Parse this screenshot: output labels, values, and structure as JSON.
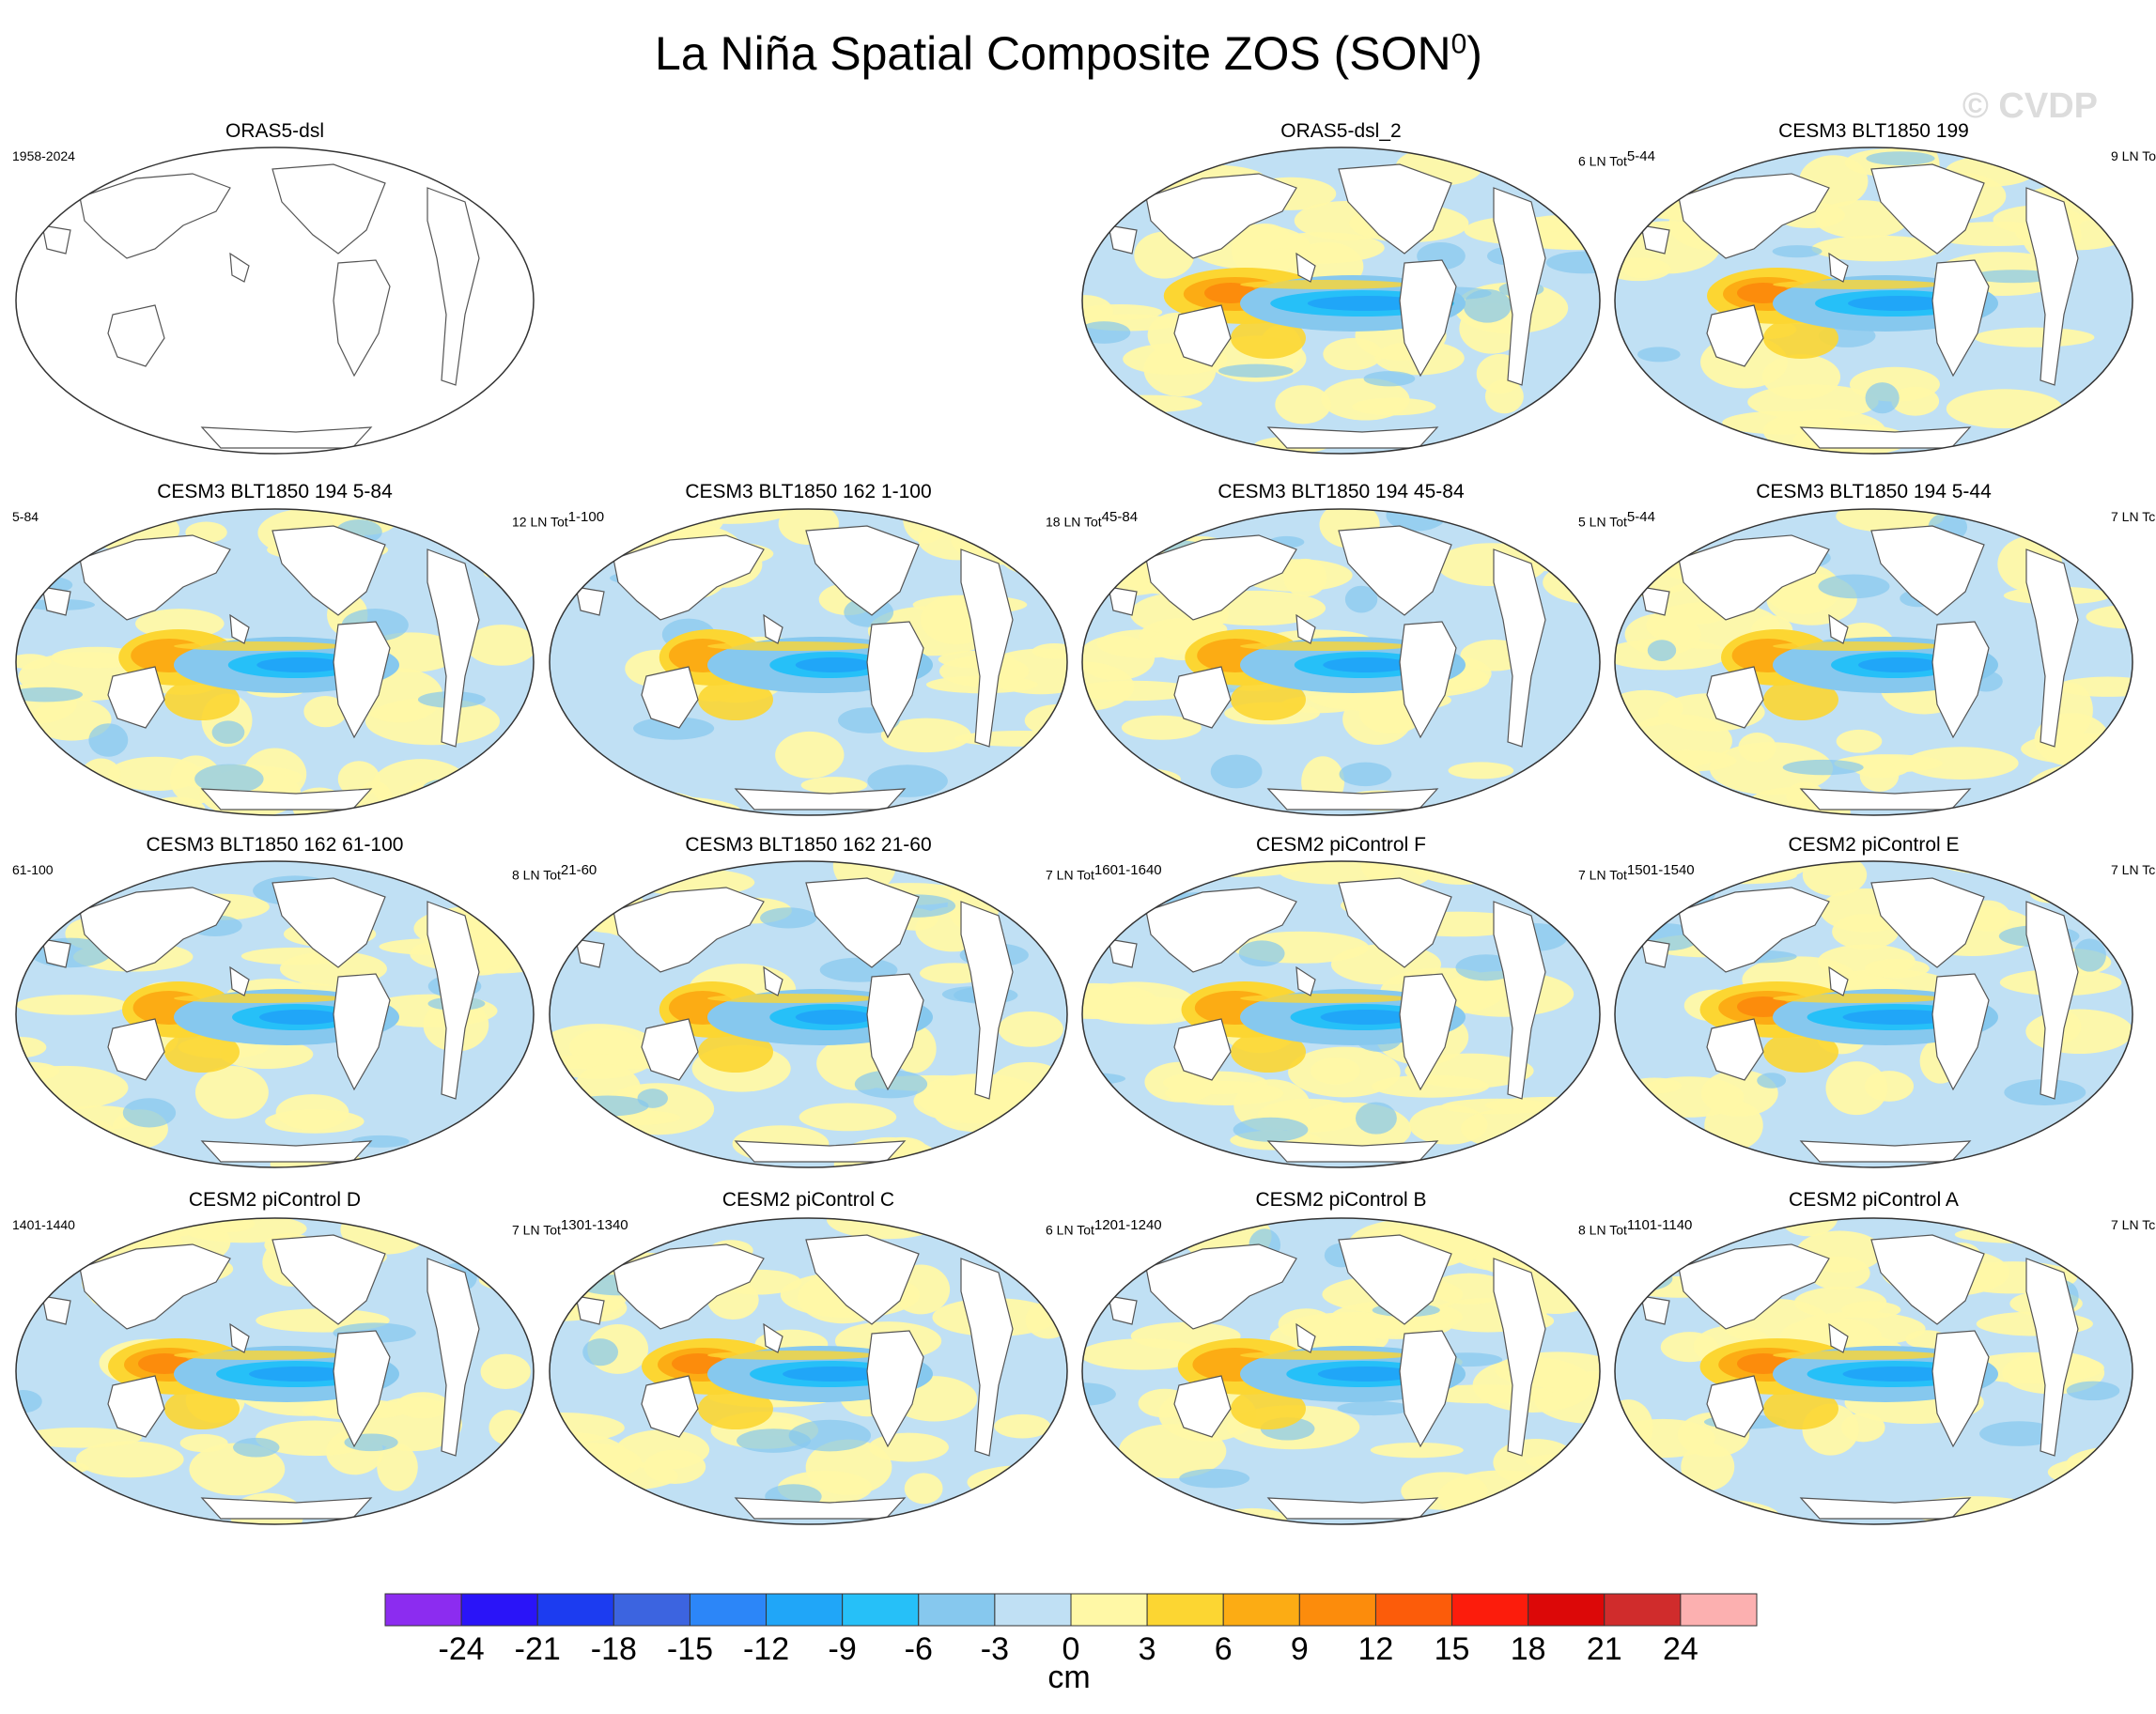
{
  "title_main": "La Niña Spatial Composite ZOS (SON",
  "title_sup": "0",
  "title_close": ")",
  "watermark": "© CVDP",
  "panels": [
    {
      "title": "ORAS5-dsl",
      "left": "1958-2024",
      "right": "",
      "right_sup": "",
      "blank": true,
      "strength": 0
    },
    {
      "title": "ORAS5-dsl_2",
      "left": "",
      "right": "6 LN Tot",
      "right_sup": "5-44",
      "blank": false,
      "strength": 1.15
    },
    {
      "title": "CESM3 BLT1850 199",
      "left": "",
      "right": "9 LN To",
      "right_sup": "",
      "blank": false,
      "strength": 1.0
    },
    {
      "title": "CESM3 BLT1850 194 5-84",
      "left": "5-84",
      "right": "12 LN Tot",
      "right_sup": "1-100",
      "blank": false,
      "strength": 0.85
    },
    {
      "title": "CESM3 BLT1850 162 1-100",
      "left": "",
      "right": "18 LN Tot",
      "right_sup": "45-84",
      "blank": false,
      "strength": 0.75
    },
    {
      "title": "CESM3 BLT1850 194 45-84",
      "left": "",
      "right": "5 LN Tot",
      "right_sup": "5-44",
      "blank": false,
      "strength": 0.85
    },
    {
      "title": "CESM3 BLT1850 194 5-44",
      "left": "",
      "right": "7 LN Tc",
      "right_sup": "",
      "blank": false,
      "strength": 0.8
    },
    {
      "title": "CESM3 BLT1850 162 61-100",
      "left": "61-100",
      "right": "8 LN Tot",
      "right_sup": "21-60",
      "blank": false,
      "strength": 0.8
    },
    {
      "title": "CESM3 BLT1850 162 21-60",
      "left": "",
      "right": "7 LN Tot",
      "right_sup": "1601-1640",
      "blank": false,
      "strength": 0.75
    },
    {
      "title": "CESM2 piControl F",
      "left": "",
      "right": "7 LN Tot",
      "right_sup": "1501-1540",
      "blank": false,
      "strength": 0.9
    },
    {
      "title": "CESM2 piControl E",
      "left": "",
      "right": "7 LN Tc",
      "right_sup": "",
      "blank": false,
      "strength": 1.1
    },
    {
      "title": "CESM2 piControl D",
      "left": "1401-1440",
      "right": "7 LN Tot",
      "right_sup": "1301-1340",
      "blank": false,
      "strength": 1.0
    },
    {
      "title": "CESM2 piControl C",
      "left": "",
      "right": "6 LN Tot",
      "right_sup": "1201-1240",
      "blank": false,
      "strength": 1.0
    },
    {
      "title": "CESM2 piControl B",
      "left": "",
      "right": "8 LN Tot",
      "right_sup": "1101-1140",
      "blank": false,
      "strength": 0.95
    },
    {
      "title": "CESM2 piControl A",
      "left": "",
      "right": "7 LN Tc",
      "right_sup": "",
      "blank": false,
      "strength": 1.1
    }
  ],
  "colorbar": {
    "colors": [
      "#8c2cf0",
      "#2a14f8",
      "#1c3cf0",
      "#3c64e0",
      "#2c86f8",
      "#20a6f8",
      "#26c0f8",
      "#86c8ee",
      "#c0e0f4",
      "#fff8a6",
      "#fcd632",
      "#fcac14",
      "#fc8c0c",
      "#fc5c0a",
      "#fc1c0c",
      "#dc0808",
      "#d02c2c",
      "#fcb0b0"
    ],
    "labels": [
      "-24",
      "-21",
      "-18",
      "-15",
      "-12",
      "-9",
      "-6",
      "-3",
      "0",
      "3",
      "6",
      "9",
      "12",
      "15",
      "18",
      "21",
      "24"
    ],
    "units": "cm"
  },
  "chart_data": {
    "type": "heatmap",
    "title": "La Niña Spatial Composite ZOS (SON0)",
    "units": "cm",
    "levels": [
      -24,
      -21,
      -18,
      -15,
      -12,
      -9,
      -6,
      -3,
      0,
      3,
      6,
      9,
      12,
      15,
      18,
      21,
      24
    ],
    "pattern": "negative anomaly in the central/eastern equatorial Pacific, positive anomaly in the western Pacific warm pool"
  }
}
